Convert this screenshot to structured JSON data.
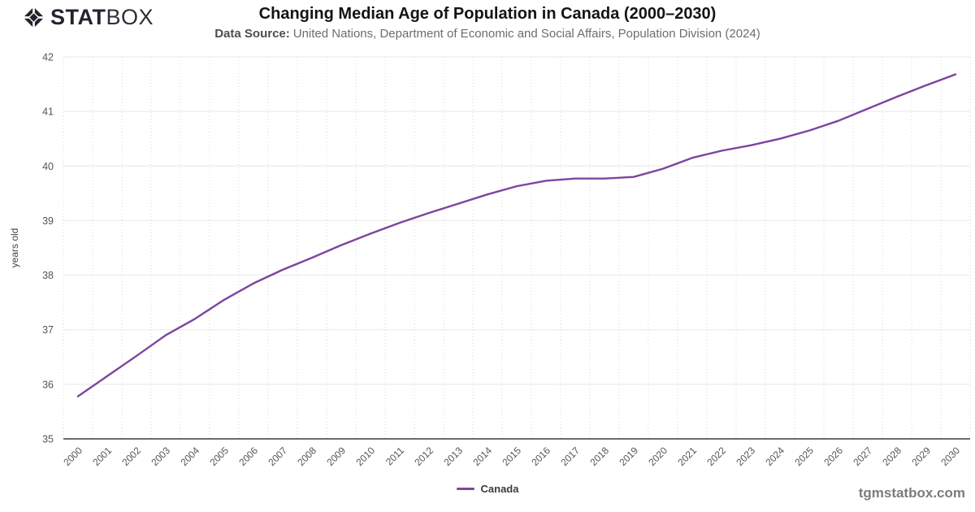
{
  "header": {
    "logo_stat": "STAT",
    "logo_box": "BOX",
    "data_source_label": "Data Source:",
    "data_source": "United Nations, Department of Economic and Social Affairs, Population Division (2024)"
  },
  "footer": {
    "website": "tgmstatbox.com"
  },
  "colors": {
    "series_line": "#7d44a0",
    "axis": "#3a3a3a",
    "gridline": "#e8e8e8",
    "tick_text": "#555555",
    "logo": "#23232e"
  },
  "chart_data": {
    "type": "line",
    "title": "Changing Median Age of Population in Canada (2000–2030)",
    "xlabel": "",
    "ylabel": "years old",
    "ylim": [
      35,
      42
    ],
    "yticks": [
      35,
      36,
      37,
      38,
      39,
      40,
      41,
      42
    ],
    "grid": {
      "horizontal": "solid",
      "vertical": "dotted"
    },
    "legend_position": "bottom",
    "x": [
      "2000",
      "2001",
      "2002",
      "2003",
      "2004",
      "2005",
      "2006",
      "2007",
      "2008",
      "2009",
      "2010",
      "2011",
      "2012",
      "2013",
      "2014",
      "2015",
      "2016",
      "2017",
      "2018",
      "2019",
      "2020",
      "2021",
      "2022",
      "2023",
      "2024",
      "2025",
      "2026",
      "2027",
      "2028",
      "2029",
      "2030"
    ],
    "series": [
      {
        "name": "Canada",
        "color": "#7d44a0",
        "values": [
          35.78,
          36.15,
          36.52,
          36.9,
          37.2,
          37.55,
          37.85,
          38.1,
          38.32,
          38.55,
          38.76,
          38.96,
          39.14,
          39.31,
          39.48,
          39.63,
          39.73,
          39.77,
          39.77,
          39.8,
          39.95,
          40.15,
          40.28,
          40.38,
          40.5,
          40.65,
          40.83,
          41.05,
          41.27,
          41.48,
          41.68
        ]
      }
    ]
  }
}
